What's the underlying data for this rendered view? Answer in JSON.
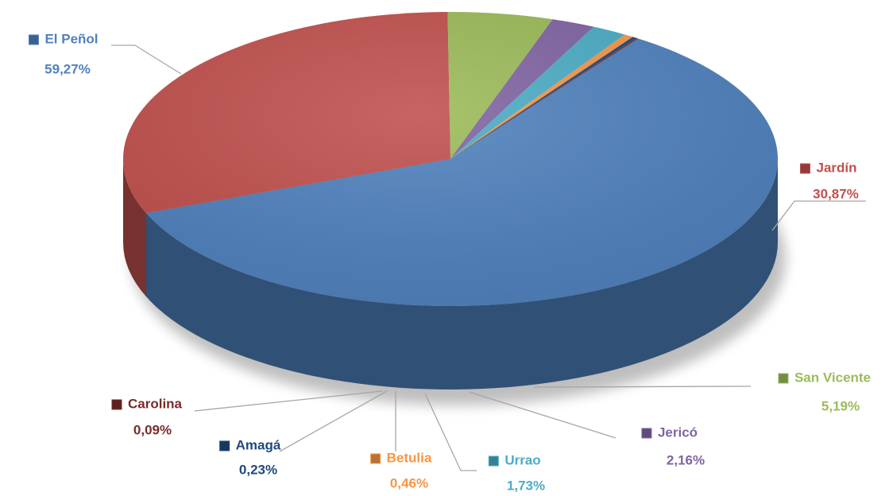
{
  "chart_data": {
    "type": "pie",
    "three_d": true,
    "categories": [
      "El Peñol",
      "Jardín",
      "San Vicente",
      "Jericó",
      "Urrao",
      "Betulia",
      "Amagá",
      "Carolina"
    ],
    "values": [
      59.27,
      30.87,
      5.19,
      2.16,
      1.73,
      0.46,
      0.23,
      0.09
    ],
    "value_labels": [
      "59,27%",
      "30,87%",
      "5,19%",
      "2,16%",
      "1,73%",
      "0,46%",
      "0,23%",
      "0,09%"
    ],
    "colors": [
      "#4f81bd",
      "#c0504d",
      "#9bbb59",
      "#8064a2",
      "#4bacc6",
      "#f79646",
      "#1f497d",
      "#772c2a"
    ],
    "label_colors": [
      "#4f81bd",
      "#c0504d",
      "#9bbb59",
      "#8064a2",
      "#4bacc6",
      "#f79646",
      "#1f497d",
      "#772c2a"
    ]
  }
}
